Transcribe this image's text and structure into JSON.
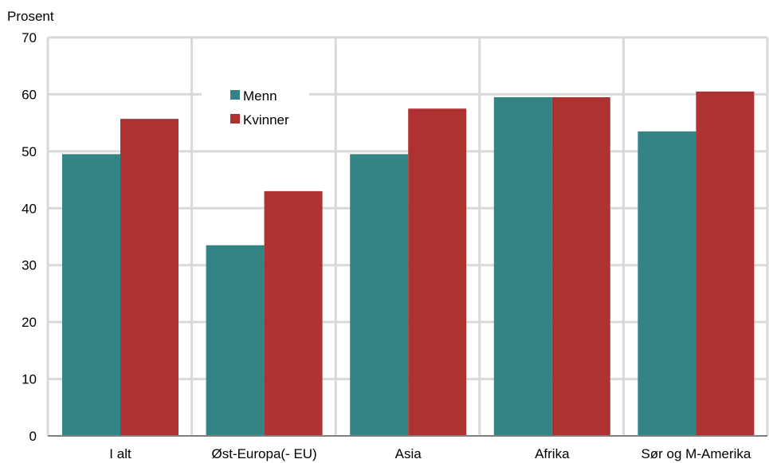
{
  "chart_data": {
    "type": "bar",
    "ylabel": "Prosent",
    "ylim": [
      0,
      70
    ],
    "yticks": [
      0,
      10,
      20,
      30,
      40,
      50,
      60,
      70
    ],
    "categories": [
      "I alt",
      "Øst-Europa(- EU)",
      "Asia",
      "Afrika",
      "Sør og M-Amerika"
    ],
    "series": [
      {
        "name": "Menn",
        "color": "#338484",
        "values": [
          49.5,
          33.5,
          49.5,
          59.5,
          53.5
        ]
      },
      {
        "name": "Kvinner",
        "color": "#ae3232",
        "values": [
          55.7,
          43,
          57.5,
          59.5,
          60.5
        ]
      }
    ],
    "grid": true,
    "legend": "inside, upper center-left"
  }
}
